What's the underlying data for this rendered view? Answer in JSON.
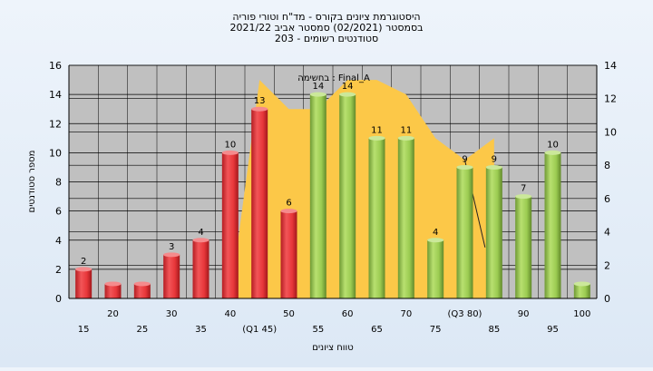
{
  "chart_data": {
    "type": "bar",
    "title_lines": [
      "היסטוגרמת ציונים בקורס - מד\"ח וטורי פוריה",
      "בסמסטר  (02/2021)  סמסטר אביב 2021/22",
      "סטודנטים רשומים - 203"
    ],
    "legend_text": "בחשימה : Final_A",
    "xlabel": "טווח ציונים",
    "ylabel": "מספר סטודנטים",
    "ylim": [
      0,
      16
    ],
    "yticks": [
      0,
      2,
      4,
      6,
      8,
      10,
      12,
      14,
      16
    ],
    "y2lim": [
      0,
      14
    ],
    "y2ticks": [
      0,
      2,
      4,
      6,
      8,
      10,
      12,
      14
    ],
    "grid": true,
    "categories": [
      "15",
      "20",
      "25",
      "30",
      "35",
      "40",
      "(Q1 45)",
      "50",
      "55",
      "60",
      "65",
      "70",
      "75",
      "(Q3 80)",
      "85",
      "90",
      "95",
      "100"
    ],
    "values": [
      2,
      1,
      1,
      3,
      4,
      10,
      13,
      6,
      14,
      14,
      11,
      11,
      4,
      9,
      9,
      7,
      10,
      1
    ],
    "data_labels": [
      "2",
      "",
      "",
      "3",
      "4",
      "10",
      "13",
      "6",
      "14",
      "14",
      "11",
      "11",
      "4",
      "9",
      "9",
      "7",
      "10",
      ""
    ],
    "bar_colors": [
      "red",
      "red",
      "red",
      "red",
      "red",
      "red",
      "red",
      "red",
      "green",
      "green",
      "green",
      "green",
      "green",
      "green",
      "green",
      "green",
      "green",
      "green"
    ],
    "area_series": {
      "x_start": "40",
      "x_end": "85",
      "x": [
        "40",
        "(Q1 45)",
        "50",
        "55",
        "60",
        "65",
        "70",
        "75",
        "(Q3 80)",
        "85"
      ],
      "values": [
        0,
        15,
        13,
        13,
        15,
        15,
        14,
        11,
        9.5,
        11
      ]
    },
    "colors": {
      "red_bar": "#e8373a",
      "green_bar": "#9ccc52",
      "area": "#fcc848",
      "plot_bg": "#c0c0c0",
      "page_bg": "#e4edf7"
    }
  }
}
